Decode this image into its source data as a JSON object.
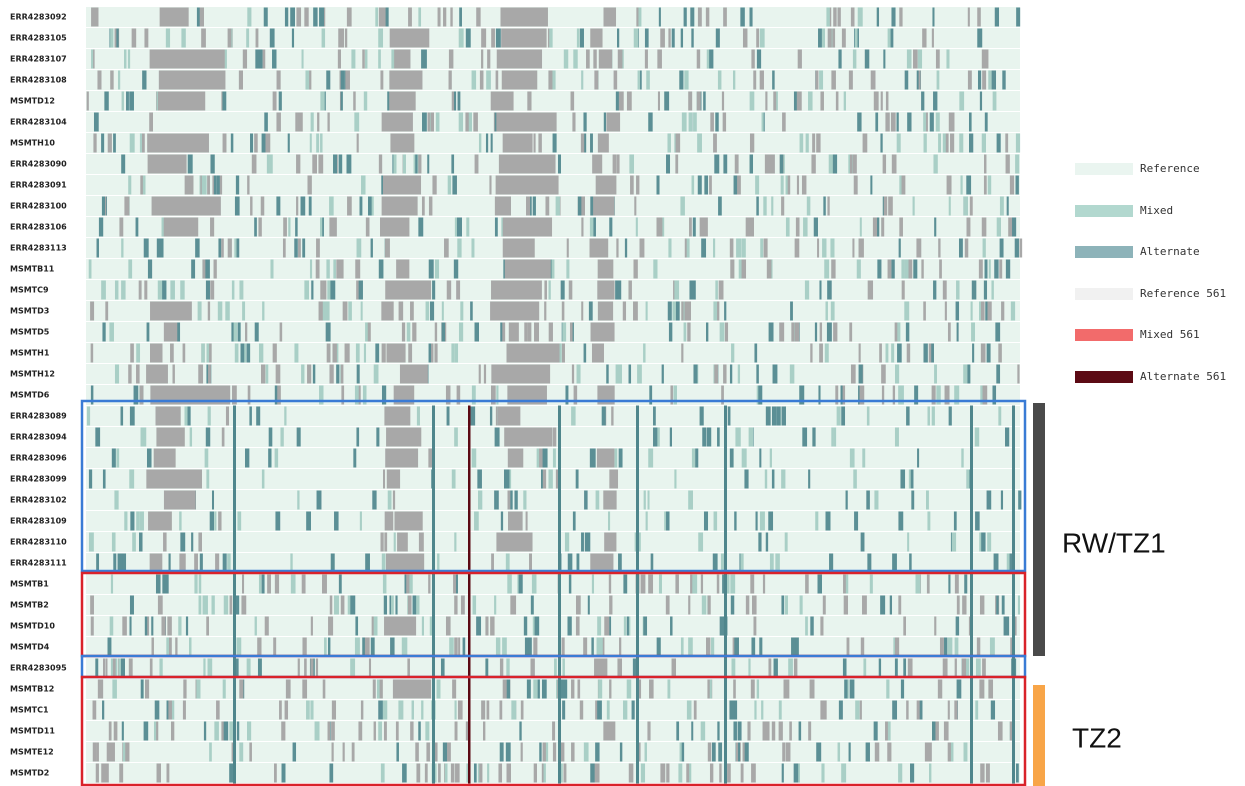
{
  "samples": [
    "ERR4283092",
    "ERR4283105",
    "ERR4283107",
    "ERR4283108",
    "MSMTD12",
    "ERR4283104",
    "MSMTH10",
    "ERR4283090",
    "ERR4283091",
    "ERR4283100",
    "ERR4283106",
    "ERR4283113",
    "MSMTB11",
    "MSMTC9",
    "MSMTD3",
    "MSMTD5",
    "MSMTH1",
    "MSMTH12",
    "MSMTD6",
    "ERR4283089",
    "ERR4283094",
    "ERR4283096",
    "ERR4283099",
    "ERR4283102",
    "ERR4283109",
    "ERR4283110",
    "ERR4283111",
    "MSMTB1",
    "MSMTB2",
    "MSMTD10",
    "MSMTD4",
    "ERR4283095",
    "MSMTB12",
    "MSMTC1",
    "MSMTD11",
    "MSMTE12",
    "MSMTD2"
  ],
  "legend": [
    {
      "label": "Reference",
      "color": "#eaf5f0"
    },
    {
      "label": "Mixed",
      "color": "#b2d8cf"
    },
    {
      "label": "Alternate",
      "color": "#8db3b9"
    },
    {
      "label": "Reference 561",
      "color": "#f1f1f1"
    },
    {
      "label": "Mixed 561",
      "color": "#f26b6b"
    },
    {
      "label": "Alternate 561",
      "color": "#5c0a14"
    }
  ],
  "groups": [
    {
      "label": "RW/TZ1"
    },
    {
      "label": "TZ2"
    }
  ]
}
